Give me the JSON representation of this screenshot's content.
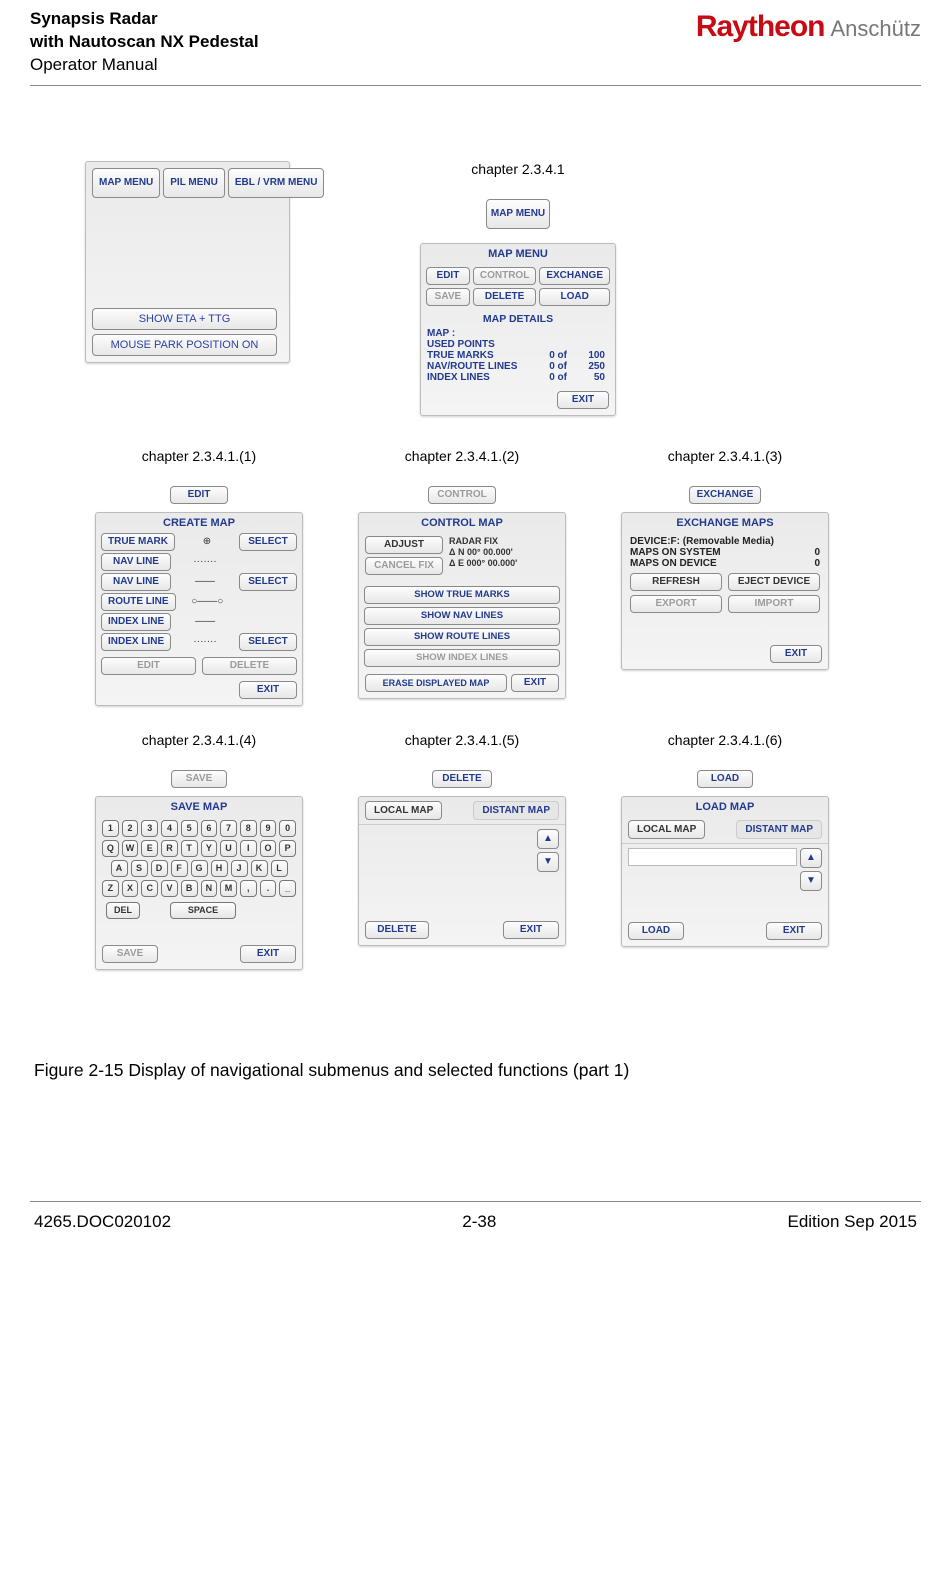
{
  "header": {
    "title_l1": "Synapsis Radar",
    "title_l2": "with Nautoscan NX Pedestal",
    "title_l3": "Operator Manual",
    "brand1": "Raytheon",
    "brand2": "Anschütz"
  },
  "topmenu": {
    "btn1": "MAP MENU",
    "btn2": "PIL MENU",
    "btn3": "EBL / VRM MENU",
    "show_eta": "SHOW ETA + TTG",
    "mouse_park": "MOUSE PARK POSITION ON"
  },
  "mapmenu": {
    "caption": "chapter 2.3.4.1",
    "btn_label": "MAP MENU",
    "title": "MAP MENU",
    "edit": "EDIT",
    "control": "CONTROL",
    "exchange": "EXCHANGE",
    "save": "SAVE",
    "delete": "DELETE",
    "load": "LOAD",
    "details_title": "MAP DETAILS",
    "map_label": "MAP :",
    "used_points": "USED POINTS",
    "rows": [
      {
        "lab": "TRUE MARKS",
        "v1": "0  of",
        "v2": "100"
      },
      {
        "lab": "NAV/ROUTE LINES",
        "v1": "0  of",
        "v2": "250"
      },
      {
        "lab": "INDEX LINES",
        "v1": "0  of",
        "v2": "50"
      }
    ],
    "exit": "EXIT"
  },
  "create": {
    "caption": "chapter 2.3.4.1.(1)",
    "topbtn": "EDIT",
    "title": "CREATE MAP",
    "rows": [
      {
        "label": "TRUE MARK",
        "icon": "⊕",
        "sel": "SELECT"
      },
      {
        "label": "NAV LINE",
        "icon": "·······",
        "sel": ""
      },
      {
        "label": "NAV LINE",
        "icon": "——",
        "sel": "SELECT"
      },
      {
        "label": "ROUTE LINE",
        "icon": "○——○",
        "sel": ""
      },
      {
        "label": "INDEX LINE",
        "icon": "——",
        "sel": ""
      },
      {
        "label": "INDEX LINE",
        "icon": "·······",
        "sel": "SELECT"
      }
    ],
    "edit": "EDIT",
    "delete": "DELETE",
    "exit": "EXIT"
  },
  "control": {
    "caption": "chapter 2.3.4.1.(2)",
    "topbtn": "CONTROL",
    "title": "CONTROL MAP",
    "adjust": "ADJUST",
    "cancel": "CANCEL FIX",
    "fix1": "RADAR FIX",
    "fix2": "Δ   N 00° 00.000'",
    "fix3": "Δ   E 000° 00.000'",
    "s1": "SHOW TRUE MARKS",
    "s2": "SHOW NAV LINES",
    "s3": "SHOW ROUTE LINES",
    "s4": "SHOW INDEX LINES",
    "erase": "ERASE DISPLAYED MAP",
    "exit": "EXIT"
  },
  "exchange": {
    "caption": "chapter 2.3.4.1.(3)",
    "topbtn": "EXCHANGE",
    "title": "EXCHANGE MAPS",
    "device": "DEVICE:F: (Removable Media)",
    "sys": "MAPS ON SYSTEM",
    "sys_v": "0",
    "dev": "MAPS ON DEVICE",
    "dev_v": "0",
    "refresh": "REFRESH",
    "eject": "EJECT DEVICE",
    "export": "EXPORT",
    "import": "IMPORT",
    "exit": "EXIT"
  },
  "savemap": {
    "caption": "chapter 2.3.4.1.(4)",
    "topbtn": "SAVE",
    "title": "SAVE MAP",
    "row1": [
      "1",
      "2",
      "3",
      "4",
      "5",
      "6",
      "7",
      "8",
      "9",
      "0"
    ],
    "row2": [
      "Q",
      "W",
      "E",
      "R",
      "T",
      "Y",
      "U",
      "I",
      "O",
      "P"
    ],
    "row3": [
      "A",
      "S",
      "D",
      "F",
      "G",
      "H",
      "J",
      "K",
      "L"
    ],
    "row4": [
      "Z",
      "X",
      "C",
      "V",
      "B",
      "N",
      "M",
      ",",
      ".",
      "_"
    ],
    "del": "DEL",
    "space": "SPACE",
    "save": "SAVE",
    "exit": "EXIT"
  },
  "delmap": {
    "caption": "chapter 2.3.4.1.(5)",
    "topbtn": "DELETE",
    "local": "LOCAL MAP",
    "distant": "DISTANT MAP",
    "up": "▲",
    "down": "▼",
    "delbtn": "DELETE",
    "exit": "EXIT"
  },
  "loadmap": {
    "caption": "chapter 2.3.4.1.(6)",
    "topbtn": "LOAD",
    "title": "LOAD MAP",
    "local": "LOCAL MAP",
    "distant": "DISTANT MAP",
    "up": "▲",
    "down": "▼",
    "loadbtn": "LOAD",
    "exit": "EXIT"
  },
  "figcap": "Figure 2-15     Display of navigational submenus and selected functions (part 1)",
  "footer": {
    "doc": "4265.DOC020102",
    "page": "2-38",
    "edition": "Edition Sep 2015"
  }
}
